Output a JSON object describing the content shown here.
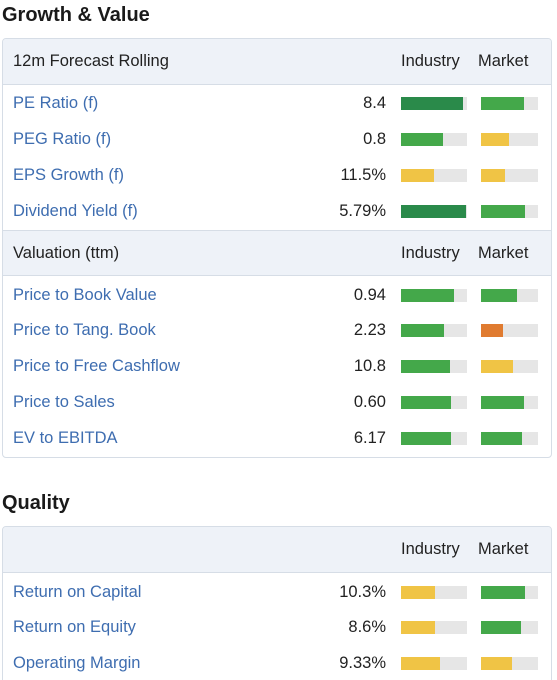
{
  "colors": {
    "dark_green": "#2a8a4a",
    "green": "#44a84a",
    "yellow": "#f0c445",
    "orange": "#e07b30",
    "track": "#e6e6e6",
    "link": "#3e6db0"
  },
  "sections": [
    {
      "title": "Growth & Value",
      "groups": [
        {
          "label": "12m Forecast Rolling",
          "industry_header": "Industry",
          "market_header": "Market",
          "rows": [
            {
              "label": "PE Ratio (f)",
              "value": "8.4",
              "industry": {
                "level": 0.94,
                "color": "#2a8a4a"
              },
              "market": {
                "level": 0.76,
                "color": "#44a84a"
              }
            },
            {
              "label": "PEG Ratio (f)",
              "value": "0.8",
              "industry": {
                "level": 0.64,
                "color": "#44a84a"
              },
              "market": {
                "level": 0.49,
                "color": "#f0c445"
              }
            },
            {
              "label": "EPS Growth (f)",
              "value": "11.5%",
              "industry": {
                "level": 0.5,
                "color": "#f0c445"
              },
              "market": {
                "level": 0.42,
                "color": "#f0c445"
              }
            },
            {
              "label": "Dividend Yield (f)",
              "value": "5.79%",
              "industry": {
                "level": 0.98,
                "color": "#2a8a4a"
              },
              "market": {
                "level": 0.78,
                "color": "#44a84a"
              }
            }
          ]
        },
        {
          "label": "Valuation (ttm)",
          "industry_header": "Industry",
          "market_header": "Market",
          "rows": [
            {
              "label": "Price to Book Value",
              "value": "0.94",
              "industry": {
                "level": 0.8,
                "color": "#44a84a"
              },
              "market": {
                "level": 0.63,
                "color": "#44a84a"
              }
            },
            {
              "label": "Price to Tang. Book",
              "value": "2.23",
              "industry": {
                "level": 0.65,
                "color": "#44a84a"
              },
              "market": {
                "level": 0.38,
                "color": "#e07b30"
              }
            },
            {
              "label": "Price to Free Cashflow",
              "value": "10.8",
              "industry": {
                "level": 0.74,
                "color": "#44a84a"
              },
              "market": {
                "level": 0.57,
                "color": "#f0c445"
              }
            },
            {
              "label": "Price to Sales",
              "value": "0.60",
              "industry": {
                "level": 0.76,
                "color": "#44a84a"
              },
              "market": {
                "level": 0.76,
                "color": "#44a84a"
              }
            },
            {
              "label": "EV to EBITDA",
              "value": "6.17",
              "industry": {
                "level": 0.76,
                "color": "#44a84a"
              },
              "market": {
                "level": 0.72,
                "color": "#44a84a"
              }
            }
          ]
        }
      ]
    },
    {
      "title": "Quality",
      "groups": [
        {
          "label": "",
          "industry_header": "Industry",
          "market_header": "Market",
          "rows": [
            {
              "label": "Return on Capital",
              "value": "10.3%",
              "industry": {
                "level": 0.52,
                "color": "#f0c445"
              },
              "market": {
                "level": 0.78,
                "color": "#44a84a"
              }
            },
            {
              "label": "Return on Equity",
              "value": "8.6%",
              "industry": {
                "level": 0.52,
                "color": "#f0c445"
              },
              "market": {
                "level": 0.71,
                "color": "#44a84a"
              }
            },
            {
              "label": "Operating Margin",
              "value": "9.33%",
              "industry": {
                "level": 0.59,
                "color": "#f0c445"
              },
              "market": {
                "level": 0.55,
                "color": "#f0c445"
              }
            }
          ]
        }
      ]
    }
  ]
}
